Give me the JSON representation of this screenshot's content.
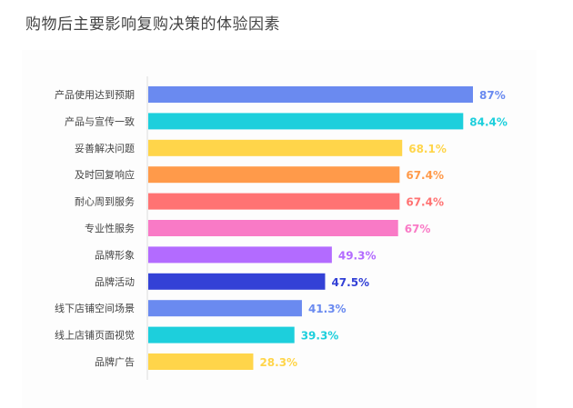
{
  "chart_data": {
    "type": "bar",
    "orientation": "horizontal",
    "title": "购物后主要影响复购决策的体验因素",
    "categories": [
      "产品使用达到预期",
      "产品与宣传一致",
      "妥善解决问题",
      "及时回复响应",
      "耐心周到服务",
      "专业性服务",
      "品牌形象",
      "品牌活动",
      "线下店铺空间场景",
      "线上店铺页面视觉",
      "品牌广告"
    ],
    "values": [
      87,
      84.4,
      68.1,
      67.4,
      67.4,
      67,
      49.3,
      47.5,
      41.3,
      39.3,
      28.3
    ],
    "data_labels": [
      "87%",
      "84.4%",
      "68.1%",
      "67.4%",
      "67.4%",
      "67%",
      "49.3%",
      "47.5%",
      "41.3%",
      "39.3%",
      "28.3%"
    ],
    "colors": [
      "#6a8af0",
      "#1dcfdc",
      "#ffd54a",
      "#ff9a4a",
      "#ff7373",
      "#f97ac6",
      "#b36bff",
      "#3341d6",
      "#6a8af0",
      "#1dcfdc",
      "#ffd54a"
    ],
    "xlim": [
      0,
      87
    ],
    "grid": false,
    "legend": "none"
  }
}
